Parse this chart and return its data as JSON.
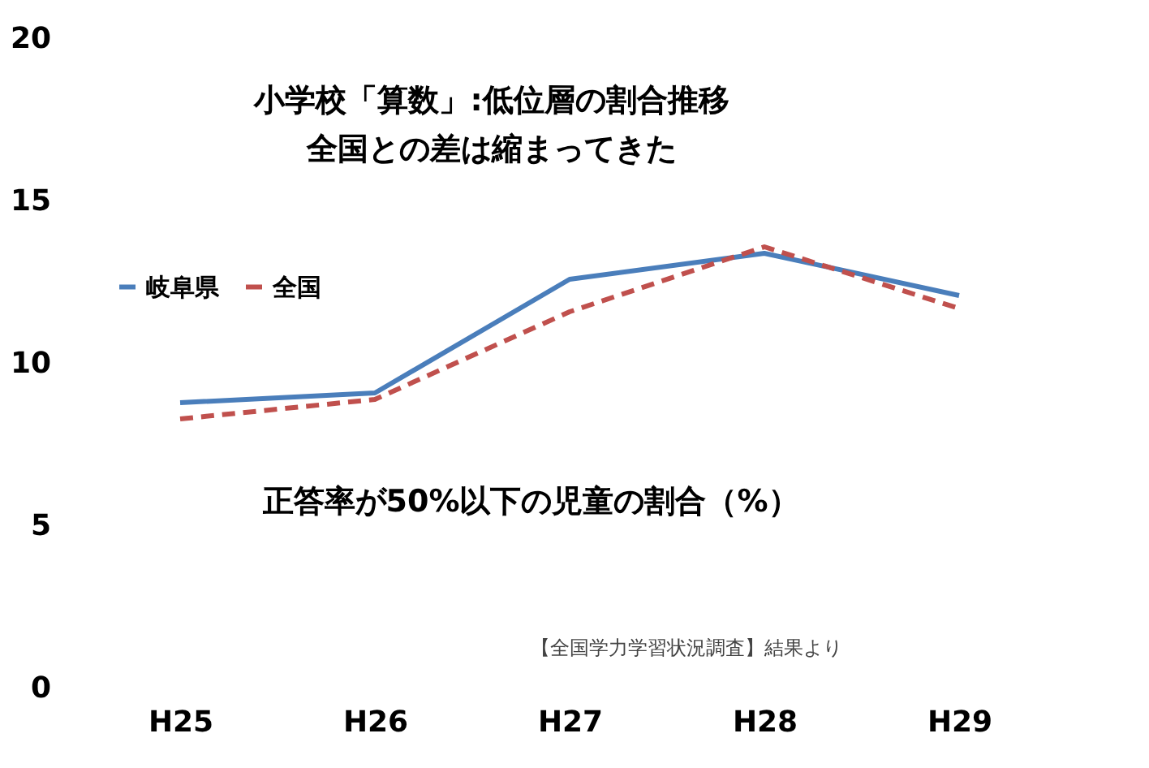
{
  "chart_data": {
    "type": "line",
    "title": "小学校「算数」:低位層の割合推移",
    "subtitle": "全国との差は縮まってきた",
    "categories": [
      "H25",
      "H26",
      "H27",
      "H28",
      "H29"
    ],
    "series": [
      {
        "name": "岐阜県",
        "color": "#4a7ebb",
        "values": [
          8.8,
          9.1,
          12.6,
          13.4,
          12.1
        ],
        "line_style": "solid"
      },
      {
        "name": "全国",
        "color": "#c0504d",
        "values": [
          8.3,
          8.9,
          11.6,
          13.6,
          11.7
        ],
        "line_style": "dashed"
      }
    ],
    "ylim": [
      0,
      20
    ],
    "yticks": [
      0,
      5,
      10,
      15,
      20
    ],
    "grid": false,
    "legend": "top left",
    "marker": "none",
    "annotations": [
      "正答率が50%以下の児童の割合（%）",
      "【全国学力学習状況調査】結果より"
    ]
  }
}
